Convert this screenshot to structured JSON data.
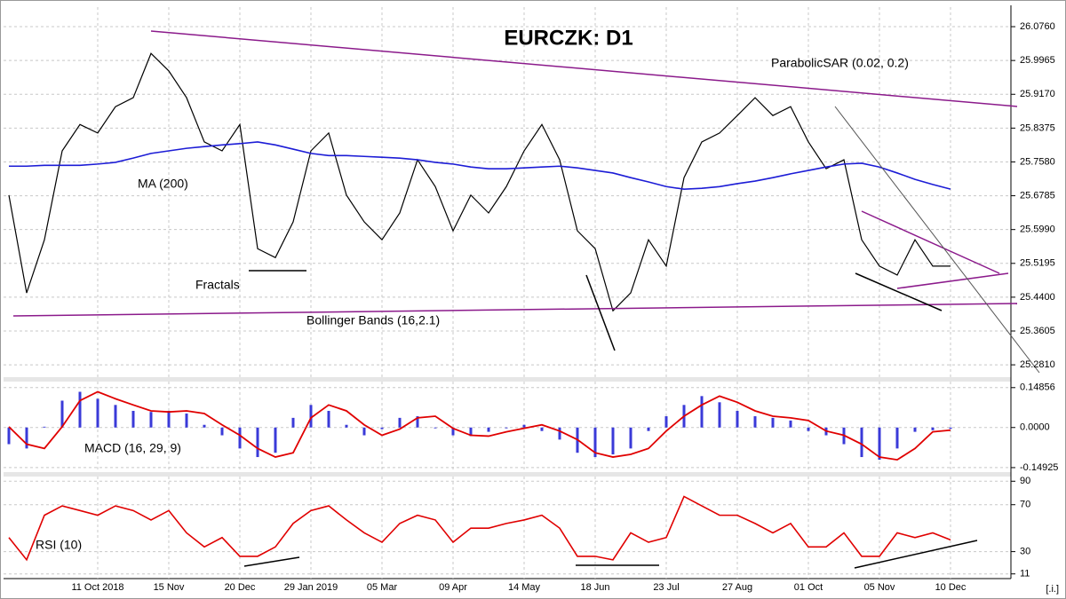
{
  "chart_data": [
    {
      "type": "line",
      "title": "EURCZK: D1",
      "categories": [
        null,
        null,
        null,
        null,
        null,
        "11 Oct 2018",
        null,
        null,
        null,
        "15 Nov",
        null,
        null,
        null,
        "20 Dec",
        null,
        null,
        null,
        "29 Jan 2019",
        null,
        null,
        null,
        "05 Mar",
        null,
        null,
        null,
        "09 Apr",
        null,
        null,
        null,
        "14 May",
        null,
        null,
        null,
        "18 Jun",
        null,
        null,
        null,
        "23 Jul",
        null,
        null,
        null,
        "27 Aug",
        null,
        null,
        null,
        "01 Oct",
        null,
        null,
        null,
        "05 Nov",
        null,
        null,
        null,
        "10 Dec"
      ],
      "series": [
        {
          "color": "#000000",
          "values": [
            25.68,
            25.45,
            25.575,
            25.784,
            25.846,
            25.826,
            25.888,
            25.909,
            26.013,
            25.972,
            25.909,
            25.805,
            25.784,
            25.846,
            25.554,
            25.533,
            25.617,
            25.784,
            25.826,
            25.68,
            25.617,
            25.575,
            25.638,
            25.763,
            25.7,
            25.596,
            25.68,
            25.638,
            25.7,
            25.784,
            25.846,
            25.763,
            25.596,
            25.554,
            25.408,
            25.45,
            25.575,
            25.513,
            25.721,
            25.805,
            25.826,
            25.867,
            25.909,
            25.867,
            25.888,
            25.805,
            25.742,
            25.763,
            25.575,
            25.513,
            25.492,
            25.575,
            25.513,
            25.513
          ]
        },
        {
          "name": "MA (200)",
          "color": "#1c1cd6",
          "values": [
            25.748,
            25.748,
            25.75,
            25.75,
            25.75,
            25.753,
            25.757,
            25.767,
            25.778,
            25.784,
            25.79,
            25.794,
            25.798,
            25.801,
            25.805,
            25.798,
            25.788,
            25.778,
            25.773,
            25.773,
            25.771,
            25.769,
            25.767,
            25.763,
            25.757,
            25.753,
            25.746,
            25.742,
            25.742,
            25.744,
            25.746,
            25.748,
            25.744,
            25.738,
            25.732,
            25.721,
            25.711,
            25.7,
            25.694,
            25.696,
            25.7,
            25.707,
            25.713,
            25.721,
            25.73,
            25.738,
            25.746,
            25.753,
            25.755,
            25.746,
            25.732,
            25.717,
            25.705,
            25.694
          ]
        }
      ],
      "annotations": [
        "ParabolicSAR (0.02, 0.2)",
        "Fractals",
        "Bollinger Bands (16,2.1)"
      ],
      "ylim": [
        25.252,
        26.122
      ],
      "yticks": [
        {
          "value": 26.076,
          "label": "26.0760"
        },
        {
          "value": 25.9965,
          "label": "25.9965"
        },
        {
          "value": 25.917,
          "label": "25.9170"
        },
        {
          "value": 25.8375,
          "label": "25.8375"
        },
        {
          "value": 25.758,
          "label": "25.7580"
        },
        {
          "value": 25.6785,
          "label": "25.6785"
        },
        {
          "value": 25.599,
          "label": "25.5990"
        },
        {
          "value": 25.5195,
          "label": "25.5195"
        },
        {
          "value": 25.44,
          "label": "25.4400"
        },
        {
          "value": 25.3605,
          "label": "25.3605"
        },
        {
          "value": 25.281,
          "label": "25.2810"
        }
      ],
      "grid": true
    },
    {
      "type": "bar",
      "title": "MACD (16, 29, 9)",
      "series": [
        {
          "type": "bar",
          "color": "#3a3ad8",
          "values": [
            -0.062,
            -0.078,
            0.003,
            0.1,
            0.133,
            0.107,
            0.084,
            0.062,
            0.058,
            0.062,
            0.052,
            0.01,
            -0.029,
            -0.078,
            -0.11,
            -0.094,
            0.036,
            0.084,
            0.062,
            0.01,
            -0.029,
            -0.006,
            0.036,
            0.042,
            -0.003,
            -0.029,
            -0.032,
            -0.016,
            -0.003,
            0.01,
            -0.013,
            -0.045,
            -0.094,
            -0.11,
            -0.1,
            -0.078,
            -0.013,
            0.042,
            0.084,
            0.117,
            0.094,
            0.062,
            0.042,
            0.036,
            0.026,
            -0.013,
            -0.029,
            -0.062,
            -0.11,
            -0.12,
            -0.078,
            -0.016,
            -0.01,
            -0.005
          ]
        },
        {
          "type": "line",
          "color": "#e00000",
          "values": [
            0.003,
            -0.062,
            -0.078,
            0.003,
            0.1,
            0.133,
            0.107,
            0.084,
            0.062,
            0.058,
            0.062,
            0.052,
            0.01,
            -0.029,
            -0.078,
            -0.11,
            -0.094,
            0.036,
            0.084,
            0.062,
            0.01,
            -0.029,
            -0.006,
            0.036,
            0.042,
            -0.003,
            -0.029,
            -0.032,
            -0.016,
            -0.003,
            0.01,
            -0.013,
            -0.045,
            -0.094,
            -0.11,
            -0.1,
            -0.078,
            -0.013,
            0.042,
            0.084,
            0.117,
            0.094,
            0.062,
            0.042,
            0.036,
            0.026,
            -0.013,
            -0.029,
            -0.062,
            -0.11,
            -0.12,
            -0.078,
            -0.016,
            -0.01
          ]
        }
      ],
      "ylim": [
        -0.166,
        0.171
      ],
      "yticks": [
        0.14856,
        {
          "value": 0,
          "label": "0.0000"
        },
        -0.14925
      ],
      "grid": true
    },
    {
      "type": "line",
      "title": "RSI (10)",
      "series": [
        {
          "color": "#e00000",
          "values": [
            42,
            23,
            61,
            69,
            65,
            61,
            69,
            65,
            57,
            65,
            46,
            34,
            42,
            26,
            26,
            34,
            54,
            65,
            69,
            57,
            46,
            38,
            54,
            61,
            57,
            38,
            50,
            50,
            54,
            57,
            61,
            50,
            26,
            26,
            23,
            46,
            38,
            42,
            77,
            69,
            61,
            61,
            54,
            46,
            54,
            34,
            34,
            46,
            26,
            26,
            46,
            42,
            46,
            40
          ]
        }
      ],
      "ylim": [
        7,
        94
      ],
      "yticks": [
        90,
        70,
        30,
        11
      ],
      "grid": true
    }
  ],
  "logo": "[.i.]"
}
